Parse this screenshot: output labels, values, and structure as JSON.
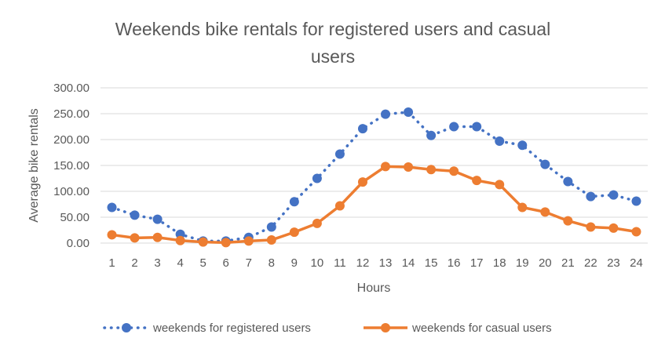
{
  "chart_data": {
    "type": "line",
    "title_lines": [
      "Weekends bike rentals for registered users and casual",
      "users"
    ],
    "xlabel": "Hours",
    "ylabel": "Average  bike rentals",
    "ylim": [
      0,
      300
    ],
    "y_ticks": [
      "0.00",
      "50.00",
      "100.00",
      "150.00",
      "200.00",
      "250.00",
      "300.00"
    ],
    "categories": [
      "1",
      "2",
      "3",
      "4",
      "5",
      "6",
      "7",
      "8",
      "9",
      "10",
      "11",
      "12",
      "13",
      "14",
      "15",
      "16",
      "17",
      "18",
      "19",
      "20",
      "21",
      "22",
      "23",
      "24"
    ],
    "grid": "horizontal",
    "legend_position": "bottom",
    "series": [
      {
        "name": "weekends for registered users",
        "color": "#4472c4",
        "style": "dotted-markers",
        "values": [
          69,
          54,
          46,
          17,
          4,
          4,
          11,
          31,
          80,
          125,
          172,
          221,
          249,
          253,
          208,
          225,
          225,
          197,
          189,
          152,
          119,
          90,
          93,
          81
        ]
      },
      {
        "name": "weekends for casual users",
        "color": "#ed7d31",
        "style": "solid-markers",
        "values": [
          16,
          10,
          11,
          5,
          2,
          1,
          4,
          6,
          21,
          38,
          72,
          118,
          148,
          147,
          142,
          139,
          121,
          113,
          69,
          60,
          43,
          31,
          29,
          22
        ]
      }
    ]
  }
}
